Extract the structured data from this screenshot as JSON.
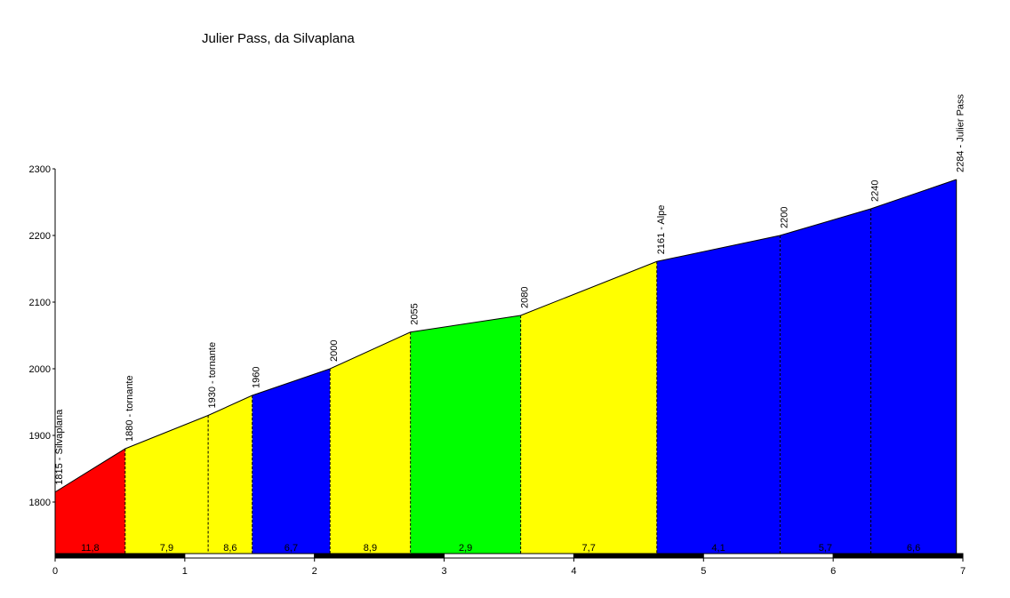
{
  "chart_data": {
    "type": "area",
    "title": "Julier Pass, da Silvaplana",
    "xlabel": "",
    "ylabel": "",
    "xlim": [
      0,
      7
    ],
    "ylim": [
      1720,
      2300
    ],
    "x_ticks": [
      "0",
      "1",
      "2",
      "3",
      "4",
      "5",
      "6",
      "7"
    ],
    "y_ticks": [
      "1800",
      "1900",
      "2000",
      "2100",
      "2200",
      "2300"
    ],
    "points": [
      {
        "km": 0.0,
        "alt": 1815,
        "label": "1815 - Silvaplana"
      },
      {
        "km": 0.54,
        "alt": 1880,
        "label": "1880 - tornante"
      },
      {
        "km": 1.18,
        "alt": 1930,
        "label": "1930 - tornante"
      },
      {
        "km": 1.52,
        "alt": 1960,
        "label": "1960"
      },
      {
        "km": 2.12,
        "alt": 2000,
        "label": "2000"
      },
      {
        "km": 2.74,
        "alt": 2055,
        "label": "2055"
      },
      {
        "km": 3.59,
        "alt": 2080,
        "label": "2080"
      },
      {
        "km": 4.64,
        "alt": 2161,
        "label": "2161 - Alpe"
      },
      {
        "km": 5.59,
        "alt": 2200,
        "label": "2200"
      },
      {
        "km": 6.29,
        "alt": 2240,
        "label": "2240"
      },
      {
        "km": 6.95,
        "alt": 2284,
        "label": "2284 - Julier Pass"
      }
    ],
    "segments": [
      {
        "grade": "11,8",
        "color": "#ff0000"
      },
      {
        "grade": "7,9",
        "color": "#ffff00"
      },
      {
        "grade": "8,6",
        "color": "#ffff00"
      },
      {
        "grade": "6,7",
        "color": "#0000ff"
      },
      {
        "grade": "8,9",
        "color": "#ffff00"
      },
      {
        "grade": "2,9",
        "color": "#00ff00"
      },
      {
        "grade": "7,7",
        "color": "#ffff00"
      },
      {
        "grade": "4,1",
        "color": "#0000ff"
      },
      {
        "grade": "5,7",
        "color": "#0000ff"
      },
      {
        "grade": "6,6",
        "color": "#0000ff"
      }
    ],
    "grid": false
  }
}
